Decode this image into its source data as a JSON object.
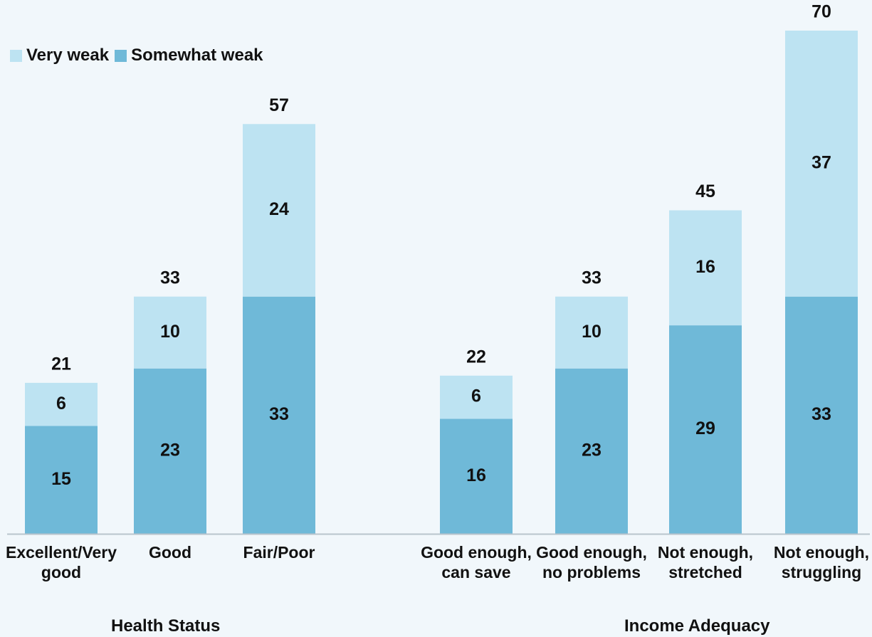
{
  "colors": {
    "very_weak": "#bde3f2",
    "somewhat_weak": "#6fb9d8",
    "axis": "#b9c4cc",
    "text": "#111111"
  },
  "legend": {
    "very_weak": "Very weak",
    "somewhat_weak": "Somewhat weak"
  },
  "groups": {
    "health": "Health Status",
    "income": "Income Adequacy"
  },
  "chart_data": {
    "type": "bar",
    "stacked": true,
    "categories": [
      [
        "Excellent/Very",
        "good"
      ],
      [
        "Good"
      ],
      [
        "Fair/Poor"
      ],
      [
        "Good enough,",
        "can save"
      ],
      [
        "Good enough,",
        "no problems"
      ],
      [
        "Not enough,",
        "stretched"
      ],
      [
        "Not enough,",
        "struggling"
      ]
    ],
    "category_groups": [
      "Health Status",
      "Health Status",
      "Health Status",
      "Income Adequacy",
      "Income Adequacy",
      "Income Adequacy",
      "Income Adequacy"
    ],
    "series": [
      {
        "name": "Somewhat weak",
        "values": [
          15,
          23,
          33,
          16,
          23,
          29,
          33
        ]
      },
      {
        "name": "Very weak",
        "values": [
          6,
          10,
          24,
          6,
          10,
          16,
          37
        ]
      }
    ],
    "totals": [
      21,
      33,
      57,
      22,
      33,
      45,
      70
    ],
    "ylim": [
      0,
      70
    ],
    "legend_position": "top-left",
    "grid": false
  }
}
